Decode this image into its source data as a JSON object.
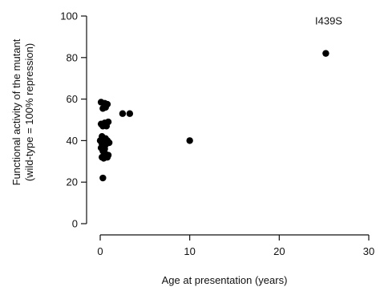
{
  "chart_data": {
    "type": "scatter",
    "title": "",
    "xlabel": "Age at presentation (years)",
    "ylabel_lines": [
      "Functional activity of the mutant",
      "(wild-type = 100% repression)"
    ],
    "xlim": [
      0,
      30
    ],
    "ylim": [
      0,
      100
    ],
    "xticks": [
      0,
      10,
      20,
      30
    ],
    "yticks": [
      0,
      20,
      40,
      60,
      80,
      100
    ],
    "grid": false,
    "legend": "none",
    "marker_color": "#000000",
    "annotations": [
      {
        "text": "I439S",
        "x": 24.0,
        "y": 99
      }
    ],
    "points": [
      {
        "x": 0.1,
        "y": 58.5
      },
      {
        "x": 0.5,
        "y": 58
      },
      {
        "x": 0.8,
        "y": 57.5
      },
      {
        "x": 0.3,
        "y": 55.5
      },
      {
        "x": 0.6,
        "y": 56
      },
      {
        "x": 0.1,
        "y": 48
      },
      {
        "x": 0.3,
        "y": 47
      },
      {
        "x": 0.5,
        "y": 48.5
      },
      {
        "x": 0.7,
        "y": 47
      },
      {
        "x": 0.9,
        "y": 49
      },
      {
        "x": 0.2,
        "y": 42
      },
      {
        "x": 0.6,
        "y": 41
      },
      {
        "x": 0.0,
        "y": 40
      },
      {
        "x": 0.2,
        "y": 38.5
      },
      {
        "x": 0.4,
        "y": 39.5
      },
      {
        "x": 0.6,
        "y": 38
      },
      {
        "x": 0.8,
        "y": 40
      },
      {
        "x": 1.0,
        "y": 39
      },
      {
        "x": 0.1,
        "y": 36.5
      },
      {
        "x": 0.5,
        "y": 36
      },
      {
        "x": 0.3,
        "y": 35
      },
      {
        "x": 0.6,
        "y": 33.5
      },
      {
        "x": 0.2,
        "y": 32
      },
      {
        "x": 0.4,
        "y": 31.5
      },
      {
        "x": 0.8,
        "y": 32
      },
      {
        "x": 0.9,
        "y": 33
      },
      {
        "x": 0.3,
        "y": 22
      },
      {
        "x": 2.5,
        "y": 53
      },
      {
        "x": 3.3,
        "y": 53
      },
      {
        "x": 10,
        "y": 40
      },
      {
        "x": 25.2,
        "y": 82
      }
    ]
  }
}
